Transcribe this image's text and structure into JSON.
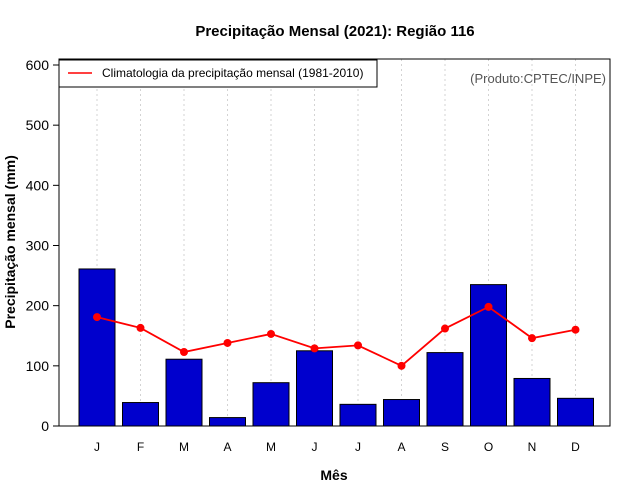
{
  "chart_data": {
    "type": "bar",
    "title": "Precipitação Mensal (2021): Região 116",
    "xlabel": "Mês",
    "ylabel": "Precipitação mensal (mm)",
    "ylim": [
      0,
      600
    ],
    "yticks": [
      0,
      100,
      200,
      300,
      400,
      500,
      600
    ],
    "grid": "vertical dotted",
    "categories": [
      "J",
      "F",
      "M",
      "A",
      "M",
      "J",
      "J",
      "A",
      "S",
      "O",
      "N",
      "D"
    ],
    "series": [
      {
        "name": "Precipitação mensal 2021",
        "kind": "bar",
        "color": "#0000cd",
        "values": [
          261,
          39,
          111,
          14,
          72,
          125,
          36,
          44,
          122,
          235,
          79,
          46
        ]
      },
      {
        "name": "Climatologia da precipitação mensal (1981-2010)",
        "kind": "line",
        "color": "#ff0000",
        "values": [
          181,
          163,
          123,
          138,
          153,
          129,
          134,
          100,
          162,
          198,
          146,
          160
        ]
      }
    ],
    "legend": {
      "position": "top-left",
      "entries": [
        "Climatologia da precipitação mensal (1981-2010)"
      ]
    },
    "annotation": "(Produto:CPTEC/INPE)"
  }
}
